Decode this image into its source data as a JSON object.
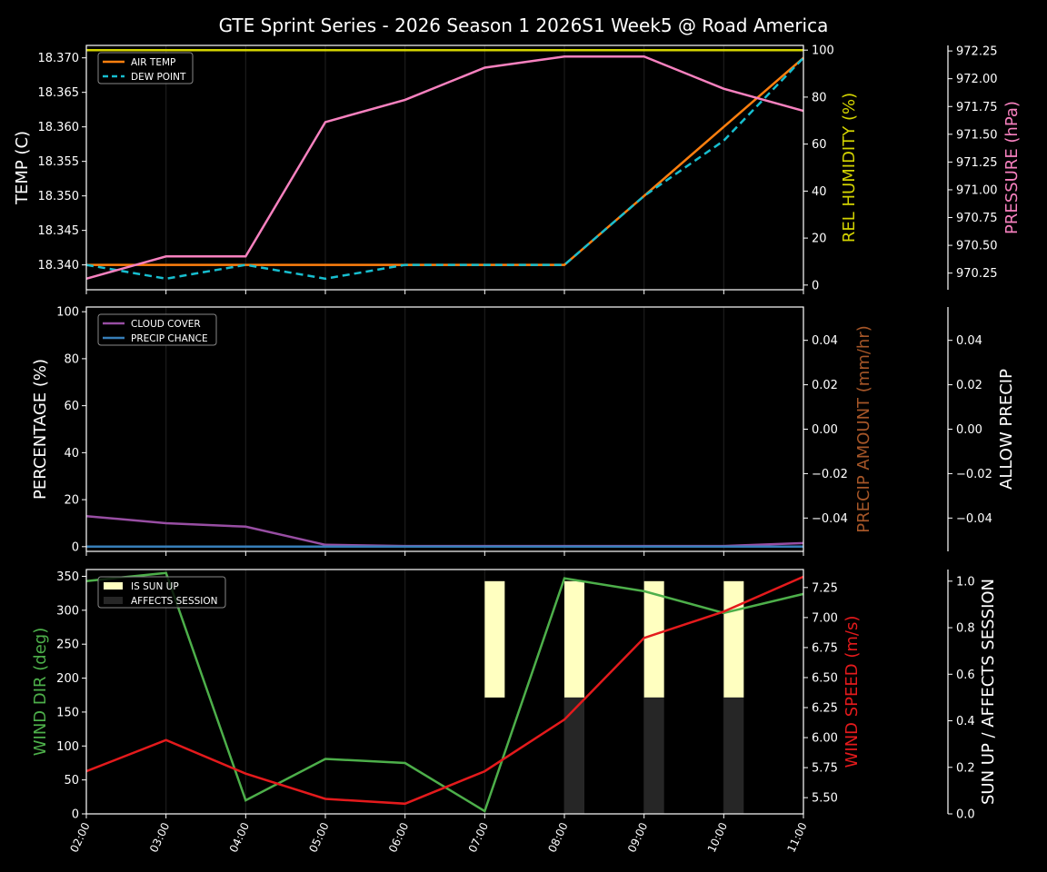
{
  "title": "GTE Sprint Series - 2026 Season 1 2026S1 Week5 @ Road America",
  "colors": {
    "background": "#000000",
    "axis": "#ffffff",
    "grid": "#1c1c1c",
    "air_temp": "#ff7f0e",
    "dew_point": "#17becf",
    "humidity": "#d4d400",
    "pressure": "#f781bf",
    "cloud_cover": "#984ea3",
    "precip_chance": "#377eb8",
    "precip_amount_label": "#a65628",
    "wind_dir": "#4daf4a",
    "wind_speed": "#e41a1c",
    "sun_up": "#ffffc0",
    "affects_session": "#262626"
  },
  "chart_data": [
    {
      "type": "line",
      "panel": "temperature",
      "x": [
        "02:00",
        "03:00",
        "04:00",
        "05:00",
        "06:00",
        "07:00",
        "08:00",
        "09:00",
        "10:00",
        "11:00"
      ],
      "series": [
        {
          "name": "AIR TEMP",
          "axis": "left",
          "values": [
            18.34,
            18.34,
            18.34,
            18.34,
            18.34,
            18.34,
            18.34,
            18.35,
            18.36,
            18.37
          ]
        },
        {
          "name": "DEW POINT",
          "axis": "left",
          "style": "dashed",
          "values": [
            18.34,
            18.338,
            18.34,
            18.338,
            18.34,
            18.34,
            18.34,
            18.35,
            18.358,
            18.37
          ]
        },
        {
          "name": "REL HUMIDITY",
          "axis": "right1",
          "values": [
            100,
            100,
            100,
            100,
            100,
            100,
            100,
            100,
            100,
            100
          ]
        },
        {
          "name": "PRESSURE",
          "axis": "right2",
          "values": [
            970.2,
            970.4,
            970.4,
            971.61,
            971.81,
            972.1,
            972.2,
            972.2,
            971.91,
            971.71
          ]
        }
      ],
      "ylabel": "TEMP (C)",
      "y_ticks": [
        "18.340",
        "18.345",
        "18.350",
        "18.355",
        "18.360",
        "18.365",
        "18.370"
      ],
      "ylim": [
        18.3364,
        18.3718
      ],
      "right1_label": "REL HUMIDITY (%)",
      "right1_ticks": [
        "0",
        "20",
        "40",
        "60",
        "80",
        "100"
      ],
      "right1_lim": [
        -2,
        102
      ],
      "right2_label": "PRESSURE (hPa)",
      "right2_ticks": [
        "970.25",
        "970.50",
        "970.75",
        "971.00",
        "971.25",
        "971.50",
        "971.75",
        "972.00",
        "972.25"
      ],
      "right2_lim": [
        970.1,
        972.3
      ],
      "legend": [
        "AIR TEMP",
        "DEW POINT"
      ],
      "legend_position": "upper left",
      "grid": "vertical"
    },
    {
      "type": "line",
      "panel": "precipitation",
      "x": [
        "02:00",
        "03:00",
        "04:00",
        "05:00",
        "06:00",
        "07:00",
        "08:00",
        "09:00",
        "10:00",
        "11:00"
      ],
      "series": [
        {
          "name": "CLOUD COVER",
          "axis": "left",
          "values": [
            13,
            10,
            8.5,
            0.8,
            0.3,
            0.3,
            0.3,
            0.3,
            0.3,
            1.5
          ]
        },
        {
          "name": "PRECIP CHANCE",
          "axis": "left",
          "values": [
            0,
            0,
            0,
            0,
            0,
            0,
            0,
            0,
            0,
            0
          ]
        }
      ],
      "ylabel": "PERCENTAGE (%)",
      "y_ticks": [
        "0",
        "20",
        "40",
        "60",
        "80",
        "100"
      ],
      "ylim": [
        -2,
        102
      ],
      "right1_label": "PRECIP AMOUNT (mm/hr)",
      "right1_ticks": [
        "−0.04",
        "−0.02",
        "0.00",
        "0.02",
        "0.04"
      ],
      "right1_lim": [
        -0.055,
        0.055
      ],
      "right2_label": "ALLOW PRECIP",
      "right2_ticks": [
        "−0.04",
        "−0.02",
        "0.00",
        "0.02",
        "0.04"
      ],
      "right2_lim": [
        -0.055,
        0.055
      ],
      "legend": [
        "CLOUD COVER",
        "PRECIP CHANCE"
      ],
      "legend_position": "upper left",
      "grid": "vertical"
    },
    {
      "type": "line",
      "panel": "wind",
      "x": [
        "02:00",
        "03:00",
        "04:00",
        "05:00",
        "06:00",
        "07:00",
        "08:00",
        "09:00",
        "10:00",
        "11:00"
      ],
      "series": [
        {
          "name": "WIND DIR",
          "axis": "left",
          "values": [
            343,
            355,
            20,
            81,
            75,
            4,
            347,
            328,
            296,
            324
          ]
        },
        {
          "name": "WIND SPEED",
          "axis": "right1",
          "values": [
            5.72,
            5.98,
            5.7,
            5.49,
            5.45,
            5.72,
            6.15,
            6.83,
            7.05,
            7.34
          ]
        }
      ],
      "bars": [
        {
          "name": "IS SUN UP",
          "x": [
            "07:00",
            "08:00",
            "09:00",
            "10:00"
          ],
          "bottom": 0.5,
          "height": 0.5
        },
        {
          "name": "AFFECTS SESSION",
          "x": [
            "08:00",
            "09:00",
            "10:00"
          ],
          "bottom": 0,
          "height": 0.5
        }
      ],
      "ylabel": "WIND DIR (deg)",
      "y_ticks": [
        "0",
        "50",
        "100",
        "150",
        "200",
        "250",
        "300",
        "350"
      ],
      "ylim": [
        0,
        360
      ],
      "right1_label": "WIND SPEED (m/s)",
      "right1_ticks": [
        "5.50",
        "5.75",
        "6.00",
        "6.25",
        "6.50",
        "6.75",
        "7.00",
        "7.25"
      ],
      "right1_lim": [
        5.365,
        7.4
      ],
      "right2_label": "SUN UP / AFFECTS SESSION",
      "right2_ticks": [
        "0.0",
        "0.2",
        "0.4",
        "0.6",
        "0.8",
        "1.0"
      ],
      "right2_lim": [
        0,
        1.05
      ],
      "legend": [
        "IS SUN UP",
        "AFFECTS SESSION"
      ],
      "legend_position": "upper left",
      "grid": "vertical",
      "xlabel_ticks": [
        "02:00",
        "03:00",
        "04:00",
        "05:00",
        "06:00",
        "07:00",
        "08:00",
        "09:00",
        "10:00",
        "11:00"
      ]
    }
  ]
}
